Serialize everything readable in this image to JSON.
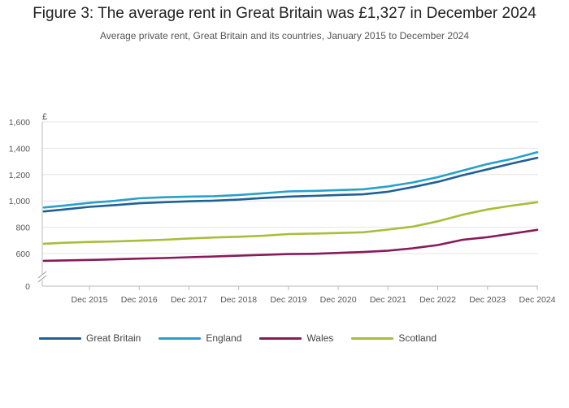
{
  "header": {
    "title": "Figure 3: The average rent in Great Britain was £1,327 in December 2024",
    "subtitle": "Average private rent, Great Britain and its countries, January 2015 to December 2024"
  },
  "chart_data": {
    "type": "line",
    "title": "Figure 3: The average rent in Great Britain was £1,327 in December 2024",
    "subtitle": "Average private rent, Great Britain and its countries, January 2015 to December 2024",
    "ylabel": "£",
    "xlabel": "",
    "ylim": [
      0,
      1600
    ],
    "y_ticks": [
      0,
      600,
      800,
      1000,
      1200,
      1400,
      1600
    ],
    "y_tick_labels": [
      "0",
      "600",
      "800",
      "1,000",
      "1,200",
      "1,400",
      "1,600"
    ],
    "y_axis_break": true,
    "x_ticks": [
      "Dec 2015",
      "Dec 2016",
      "Dec 2017",
      "Dec 2018",
      "Dec 2019",
      "Dec 2020",
      "Dec 2021",
      "Dec 2022",
      "Dec 2023",
      "Dec 2024"
    ],
    "x": [
      "Jan 2015",
      "Jun 2015",
      "Dec 2015",
      "Jun 2016",
      "Dec 2016",
      "Jun 2017",
      "Dec 2017",
      "Jun 2018",
      "Dec 2018",
      "Jun 2019",
      "Dec 2019",
      "Jun 2020",
      "Dec 2020",
      "Jun 2021",
      "Dec 2021",
      "Jun 2022",
      "Dec 2022",
      "Jun 2023",
      "Dec 2023",
      "Jun 2024",
      "Dec 2024"
    ],
    "grid": true,
    "legend_position": "bottom-left",
    "series": [
      {
        "name": "Great Britain",
        "color": "#206095",
        "values": [
          920,
          935,
          955,
          968,
          982,
          990,
          997,
          1002,
          1010,
          1022,
          1033,
          1038,
          1045,
          1050,
          1070,
          1105,
          1145,
          1195,
          1240,
          1285,
          1327
        ]
      },
      {
        "name": "England",
        "color": "#27a0cc",
        "values": [
          950,
          965,
          985,
          1000,
          1020,
          1028,
          1033,
          1036,
          1045,
          1058,
          1072,
          1076,
          1082,
          1088,
          1110,
          1140,
          1180,
          1230,
          1280,
          1320,
          1370
        ]
      },
      {
        "name": "Wales",
        "color": "#871a5b",
        "values": [
          545,
          548,
          552,
          556,
          562,
          566,
          572,
          578,
          584,
          590,
          596,
          598,
          605,
          612,
          622,
          640,
          665,
          705,
          725,
          752,
          780
        ]
      },
      {
        "name": "Scotland",
        "color": "#a8bd3a",
        "values": [
          675,
          682,
          688,
          692,
          698,
          705,
          715,
          722,
          728,
          736,
          748,
          752,
          756,
          762,
          782,
          805,
          845,
          895,
          935,
          965,
          990
        ]
      }
    ]
  }
}
